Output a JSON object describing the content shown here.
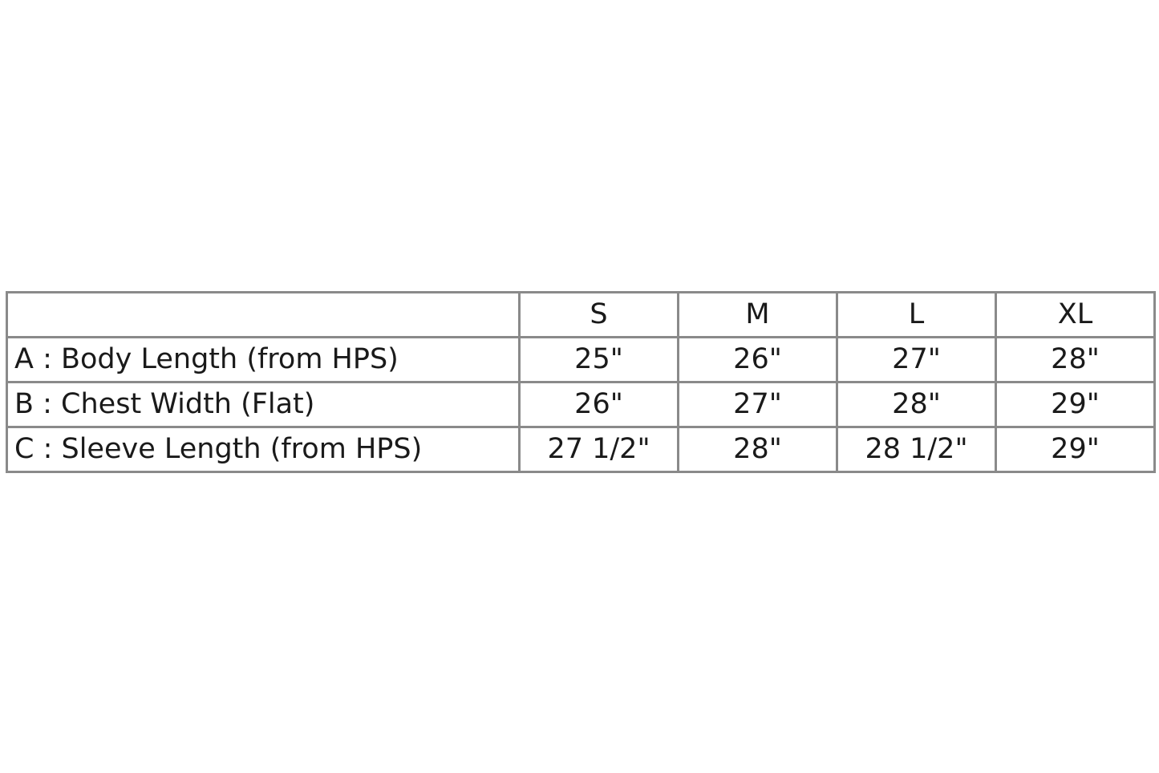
{
  "table": {
    "header": [
      "",
      "S",
      "M",
      "L",
      "XL"
    ],
    "rows": [
      {
        "label": "A : Body Length (from HPS)",
        "values": [
          "25\"",
          "26\"",
          "27\"",
          "28\""
        ]
      },
      {
        "label": "B : Chest Width (Flat)",
        "values": [
          "26\"",
          "27\"",
          "28\"",
          "29\""
        ]
      },
      {
        "label": "C : Sleeve Length (from HPS)",
        "values": [
          "27 1/2\"",
          "28\"",
          "28 1/2\"",
          "29\""
        ]
      }
    ]
  }
}
